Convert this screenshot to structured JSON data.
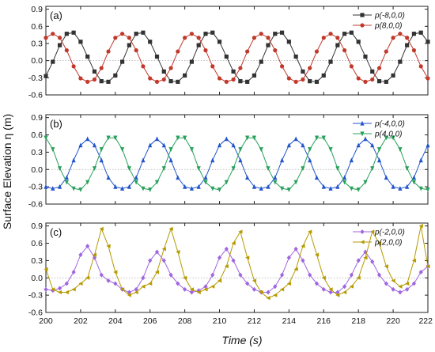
{
  "chart_data": [
    {
      "type": "line",
      "panel_label": "(a)",
      "x": [
        200,
        200.4,
        200.8,
        201.2,
        201.6,
        202,
        202.4,
        202.8,
        203.2,
        203.6,
        204,
        204.4,
        204.8,
        205.2,
        205.6,
        206,
        206.4,
        206.8,
        207.2,
        207.6,
        208,
        208.4,
        208.8,
        209.2,
        209.6,
        210,
        210.4,
        210.8,
        211.2,
        211.6,
        212,
        212.4,
        212.8,
        213.2,
        213.6,
        214,
        214.4,
        214.8,
        215.2,
        215.6,
        216,
        216.4,
        216.8,
        217.2,
        217.6,
        218,
        218.4,
        218.8,
        219.2,
        219.6,
        220,
        220.4,
        220.8,
        221.2,
        221.6,
        222
      ],
      "series": [
        {
          "name": "p(-8,0,0)",
          "color": "#333333",
          "marker": "square",
          "values": [
            -0.27,
            -0.02,
            0.27,
            0.47,
            0.49,
            0.33,
            0.07,
            -0.19,
            -0.36,
            -0.37,
            -0.26,
            -0.02,
            0.27,
            0.47,
            0.49,
            0.33,
            0.07,
            -0.19,
            -0.36,
            -0.37,
            -0.26,
            -0.02,
            0.27,
            0.47,
            0.49,
            0.33,
            0.07,
            -0.19,
            -0.36,
            -0.37,
            -0.26,
            -0.02,
            0.27,
            0.47,
            0.49,
            0.33,
            0.07,
            -0.19,
            -0.36,
            -0.37,
            -0.26,
            -0.02,
            0.27,
            0.47,
            0.49,
            0.33,
            0.07,
            -0.19,
            -0.36,
            -0.37,
            -0.26,
            -0.02,
            0.27,
            0.47,
            0.49,
            0.33
          ]
        },
        {
          "name": "p(8,0,0)",
          "color": "#c0392b",
          "marker": "circle",
          "values": [
            0.4,
            0.47,
            0.4,
            0.18,
            -0.1,
            -0.31,
            -0.37,
            -0.33,
            -0.13,
            0.16,
            0.4,
            0.47,
            0.4,
            0.18,
            -0.1,
            -0.31,
            -0.37,
            -0.33,
            -0.13,
            0.16,
            0.4,
            0.47,
            0.4,
            0.18,
            -0.1,
            -0.31,
            -0.37,
            -0.33,
            -0.13,
            0.16,
            0.4,
            0.47,
            0.4,
            0.18,
            -0.1,
            -0.31,
            -0.37,
            -0.33,
            -0.13,
            0.16,
            0.4,
            0.47,
            0.4,
            0.18,
            -0.1,
            -0.31,
            -0.37,
            -0.33,
            -0.13,
            0.16,
            0.4,
            0.47,
            0.4,
            0.18,
            -0.1,
            -0.31
          ]
        }
      ],
      "yticks": [
        "0.9",
        "0.6",
        "0.3",
        "0.0",
        "-0.3",
        "-0.6"
      ],
      "ylim": [
        -0.6,
        0.95
      ],
      "xlim": [
        200,
        222
      ],
      "legend_position": "top-right"
    },
    {
      "type": "line",
      "panel_label": "(b)",
      "x": [
        200,
        200.4,
        200.8,
        201.2,
        201.6,
        202,
        202.4,
        202.8,
        203.2,
        203.6,
        204,
        204.4,
        204.8,
        205.2,
        205.6,
        206,
        206.4,
        206.8,
        207.2,
        207.6,
        208,
        208.4,
        208.8,
        209.2,
        209.6,
        210,
        210.4,
        210.8,
        211.2,
        211.6,
        212,
        212.4,
        212.8,
        213.2,
        213.6,
        214,
        214.4,
        214.8,
        215.2,
        215.6,
        216,
        216.4,
        216.8,
        217.2,
        217.6,
        218,
        218.4,
        218.8,
        219.2,
        219.6,
        220,
        220.4,
        220.8,
        221.2,
        221.6,
        222
      ],
      "series": [
        {
          "name": "p(-4,0,0)",
          "color": "#2255cc",
          "marker": "triangle-up",
          "values": [
            -0.3,
            -0.33,
            -0.3,
            -0.14,
            0.16,
            0.42,
            0.53,
            0.42,
            0.16,
            -0.14,
            -0.3,
            -0.33,
            -0.3,
            -0.14,
            0.16,
            0.42,
            0.53,
            0.42,
            0.16,
            -0.14,
            -0.3,
            -0.33,
            -0.3,
            -0.14,
            0.16,
            0.42,
            0.53,
            0.42,
            0.16,
            -0.14,
            -0.3,
            -0.33,
            -0.3,
            -0.14,
            0.16,
            0.42,
            0.53,
            0.42,
            0.16,
            -0.14,
            -0.3,
            -0.33,
            -0.3,
            -0.14,
            0.16,
            0.42,
            0.53,
            0.42,
            0.16,
            -0.14,
            -0.3,
            -0.33,
            -0.3,
            -0.14,
            0.16,
            0.42
          ]
        },
        {
          "name": "p(4,0,0)",
          "color": "#27a05a",
          "marker": "triangle-down",
          "values": [
            0.55,
            0.35,
            0.02,
            -0.22,
            -0.33,
            -0.35,
            -0.22,
            0.02,
            0.35,
            0.55,
            0.55,
            0.35,
            0.02,
            -0.22,
            -0.33,
            -0.35,
            -0.22,
            0.02,
            0.35,
            0.55,
            0.55,
            0.35,
            0.02,
            -0.22,
            -0.33,
            -0.35,
            -0.22,
            0.02,
            0.35,
            0.55,
            0.55,
            0.35,
            0.02,
            -0.22,
            -0.33,
            -0.35,
            -0.22,
            0.02,
            0.35,
            0.55,
            0.55,
            0.35,
            0.02,
            -0.22,
            -0.33,
            -0.35,
            -0.22,
            0.02,
            0.35,
            0.55,
            0.55,
            0.35,
            0.02,
            -0.22,
            -0.33,
            -0.35
          ]
        }
      ],
      "yticks": [
        "0.9",
        "0.6",
        "0.3",
        "0.0",
        "-0.3",
        "-0.6"
      ],
      "ylim": [
        -0.6,
        0.95
      ],
      "xlim": [
        200,
        222
      ],
      "legend_position": "top-right"
    },
    {
      "type": "line",
      "panel_label": "(c)",
      "x": [
        200,
        200.4,
        200.8,
        201.2,
        201.6,
        202,
        202.4,
        202.8,
        203.2,
        203.6,
        204,
        204.4,
        204.8,
        205.2,
        205.6,
        206,
        206.4,
        206.8,
        207.2,
        207.6,
        208,
        208.4,
        208.8,
        209.2,
        209.6,
        210,
        210.4,
        210.8,
        211.2,
        211.6,
        212,
        212.4,
        212.8,
        213.2,
        213.6,
        214,
        214.4,
        214.8,
        215.2,
        215.6,
        216,
        216.4,
        216.8,
        217.2,
        217.6,
        218,
        218.4,
        218.8,
        219.2,
        219.6,
        220,
        220.4,
        220.8,
        221.2,
        221.6,
        222
      ],
      "series": [
        {
          "name": "p(-2,0,0)",
          "color": "#a066e0",
          "marker": "diamond",
          "values": [
            -0.2,
            -0.22,
            -0.18,
            -0.1,
            0.1,
            0.4,
            0.55,
            0.35,
            0.05,
            -0.05,
            -0.1,
            -0.2,
            -0.25,
            -0.2,
            0.0,
            0.3,
            0.45,
            0.3,
            0.05,
            -0.1,
            -0.2,
            -0.25,
            -0.22,
            -0.15,
            0.05,
            0.35,
            0.5,
            0.3,
            0.05,
            -0.1,
            -0.2,
            -0.25,
            -0.25,
            -0.15,
            0.05,
            0.35,
            0.5,
            0.3,
            0.05,
            -0.1,
            -0.2,
            -0.25,
            -0.25,
            -0.15,
            0.05,
            0.3,
            0.45,
            0.28,
            0.05,
            -0.1,
            -0.2,
            -0.25,
            -0.2,
            -0.1,
            0.1,
            0.2
          ]
        },
        {
          "name": "p(2,0,0)",
          "color": "#b59a00",
          "marker": "triangle-left",
          "values": [
            0.15,
            -0.2,
            -0.25,
            -0.25,
            -0.2,
            -0.1,
            0.0,
            0.4,
            0.85,
            0.55,
            0.1,
            -0.2,
            -0.3,
            -0.25,
            -0.15,
            -0.1,
            0.1,
            0.5,
            0.85,
            0.45,
            0.0,
            -0.2,
            -0.25,
            -0.2,
            -0.15,
            -0.05,
            0.2,
            0.6,
            0.8,
            0.35,
            -0.05,
            -0.25,
            -0.35,
            -0.3,
            -0.2,
            -0.1,
            0.15,
            0.55,
            0.8,
            0.4,
            0.0,
            -0.2,
            -0.3,
            -0.25,
            -0.15,
            0.0,
            0.35,
            0.8,
            0.6,
            0.2,
            -0.05,
            -0.15,
            -0.1,
            0.3,
            0.9,
            0.2
          ]
        }
      ],
      "yticks": [
        "0.9",
        "0.6",
        "0.3",
        "0.0",
        "-0.3",
        "-0.6"
      ],
      "ylim": [
        -0.6,
        0.95
      ],
      "xlim": [
        200,
        222
      ],
      "legend_position": "top-right"
    }
  ],
  "xticks": [
    "200",
    "202",
    "204",
    "206",
    "208",
    "210",
    "212",
    "214",
    "216",
    "218",
    "220",
    "222"
  ],
  "xlabel": "Time (s)",
  "ylabel": "Surface Elevation η (m)",
  "zero_line": true
}
